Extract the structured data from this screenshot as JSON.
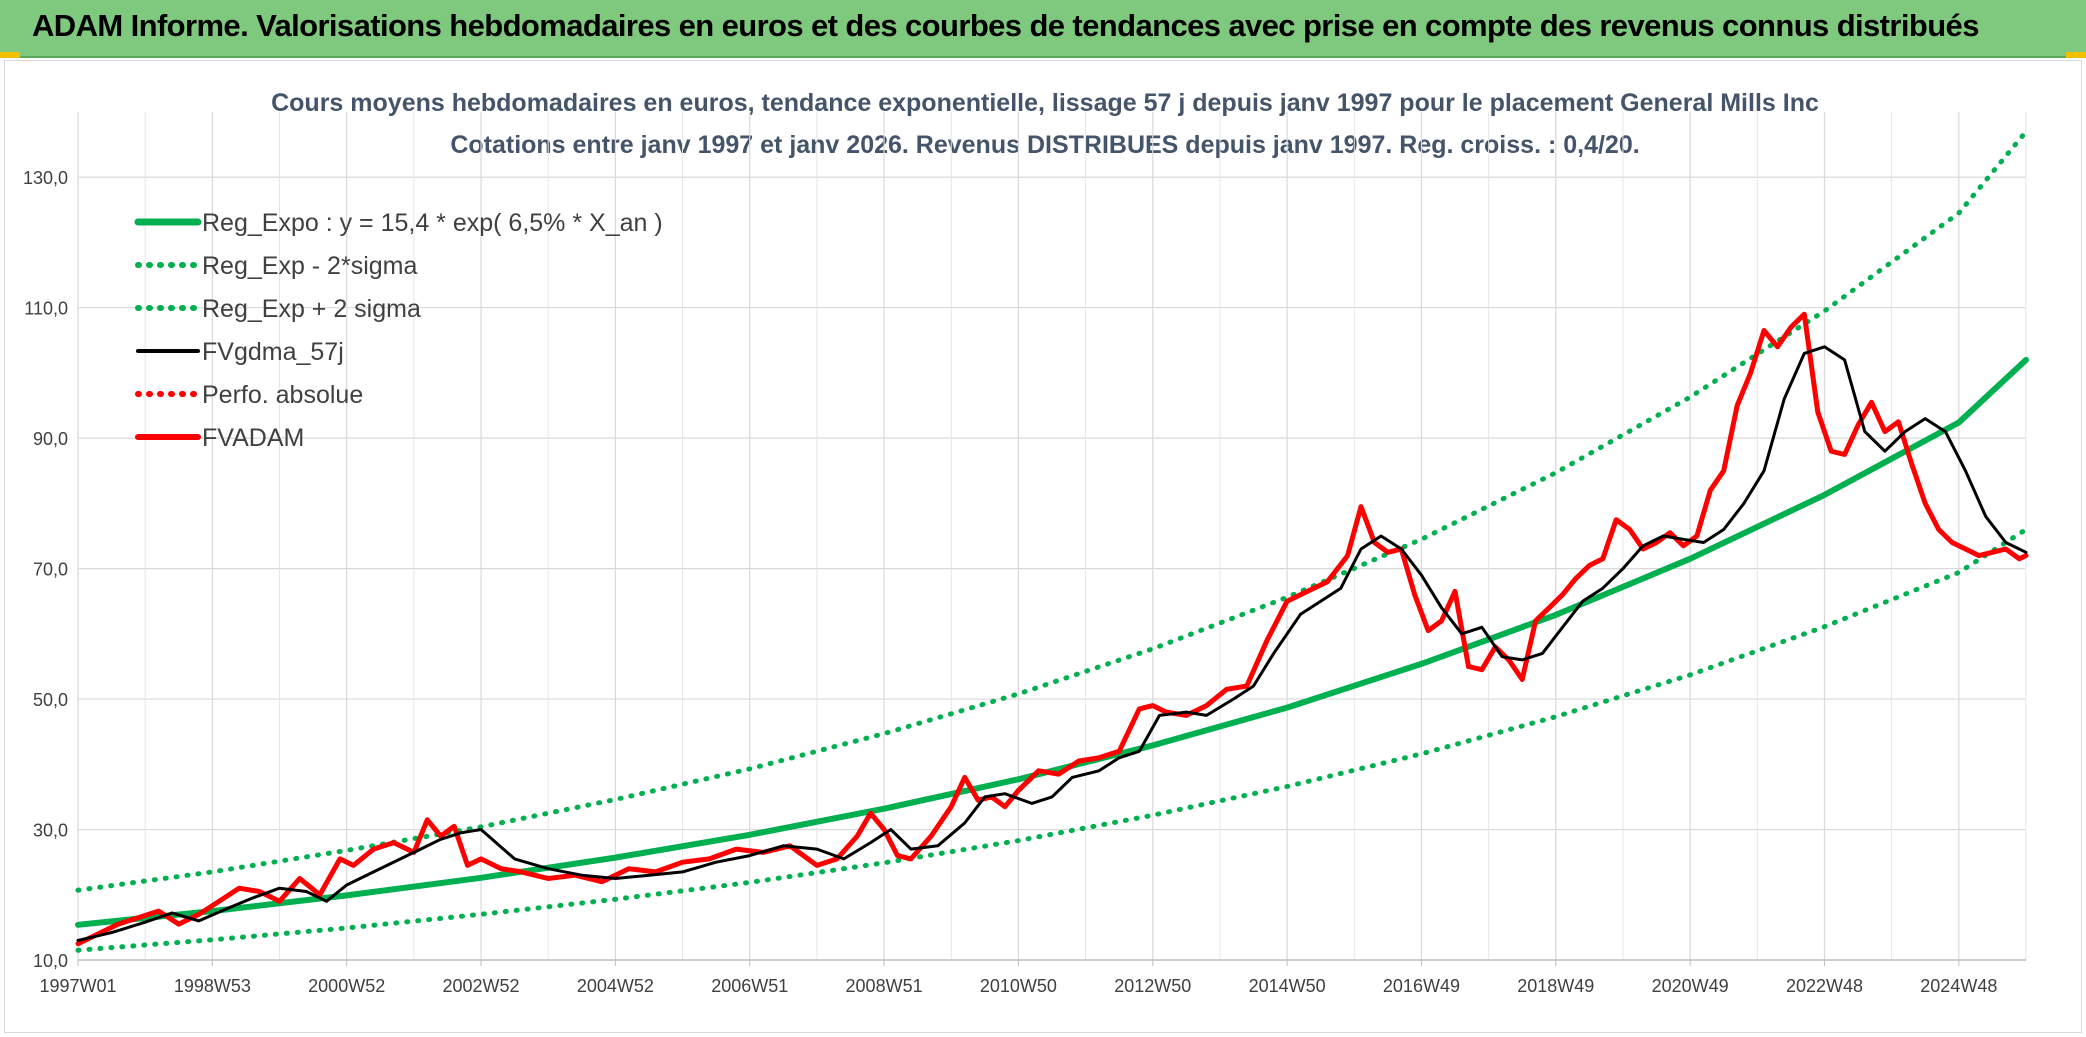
{
  "banner": {
    "title": "ADAM Informe. Valorisations hebdomadaires en euros et des courbes de tendances avec prise en compte des revenus connus distribués"
  },
  "chart_data": {
    "type": "line",
    "title": "Cours moyens hebdomadaires en euros, tendance exponentielle, lissage 57 j depuis janv 1997 pour le placement General Mills Inc",
    "subtitle": "Cotations entre janv 1997 et janv 2026. Revenus DISTRIBUES depuis janv 1997. Reg. croiss. : 0,4/20.",
    "xlabel": "",
    "ylabel": "",
    "xlim": [
      1997.0,
      2026.0
    ],
    "ylim": [
      10,
      140
    ],
    "yticks": [
      10,
      30,
      50,
      70,
      90,
      110,
      130
    ],
    "ytick_labels": [
      "10,0",
      "30,0",
      "50,0",
      "70,0",
      "90,0",
      "110,0",
      "130,0"
    ],
    "xticks": [
      1997.0,
      1999.0,
      2001.0,
      2003.0,
      2005.0,
      2007.0,
      2009.0,
      2011.0,
      2013.0,
      2015.0,
      2017.0,
      2019.0,
      2021.0,
      2023.0,
      2025.0
    ],
    "xtick_labels": [
      "1997W01",
      "1998W53",
      "2000W52",
      "2002W52",
      "2004W52",
      "2006W51",
      "2008W51",
      "2010W50",
      "2012W50",
      "2014W50",
      "2016W49",
      "2018W49",
      "2020W49",
      "2022W48",
      "2024W48"
    ],
    "grid": true,
    "legend_position": "top-left",
    "series": [
      {
        "name": "Reg_Expo : y = 15,4 * exp( 6,5% *  X_an )",
        "color": "#00b050",
        "style": "solid",
        "x": [
          1997,
          1999,
          2001,
          2003,
          2005,
          2007,
          2009,
          2011,
          2013,
          2015,
          2017,
          2019,
          2021,
          2023,
          2025,
          2026
        ],
        "values": [
          15.4,
          17.5,
          19.9,
          22.6,
          25.7,
          29.2,
          33.2,
          37.7,
          42.9,
          48.7,
          55.4,
          62.9,
          71.5,
          81.3,
          92.4,
          102.0
        ]
      },
      {
        "name": "Reg_Exp - 2*sigma",
        "color": "#00b050",
        "style": "dotted",
        "x": [
          1997,
          1999,
          2001,
          2003,
          2005,
          2007,
          2009,
          2011,
          2013,
          2015,
          2017,
          2019,
          2021,
          2023,
          2025,
          2026
        ],
        "values": [
          11.5,
          13.1,
          14.9,
          17.0,
          19.3,
          21.9,
          24.9,
          28.3,
          32.2,
          36.6,
          41.6,
          47.3,
          53.7,
          61.1,
          69.4,
          76.0
        ]
      },
      {
        "name": "Reg_Exp + 2 sigma",
        "color": "#00b050",
        "style": "dotted",
        "x": [
          1997,
          1999,
          2001,
          2003,
          2005,
          2007,
          2009,
          2011,
          2013,
          2015,
          2017,
          2019,
          2021,
          2023,
          2025,
          2026
        ],
        "values": [
          20.7,
          23.5,
          26.8,
          30.4,
          34.6,
          39.3,
          44.7,
          50.8,
          57.7,
          65.6,
          74.5,
          84.7,
          96.3,
          109.5,
          124.5,
          137.0
        ]
      },
      {
        "name": "FVgdma_57j",
        "color": "#000000",
        "style": "solid",
        "x": [
          1997.0,
          1997.5,
          1998.0,
          1998.4,
          1998.8,
          1999.2,
          1999.6,
          2000.0,
          2000.4,
          2000.7,
          2001.0,
          2001.4,
          2001.8,
          2002.1,
          2002.4,
          2002.7,
          2003.0,
          2003.5,
          2004.0,
          2004.5,
          2005.0,
          2005.5,
          2006.0,
          2006.5,
          2007.0,
          2007.5,
          2008.0,
          2008.4,
          2008.8,
          2009.1,
          2009.4,
          2009.8,
          2010.2,
          2010.5,
          2010.8,
          2011.2,
          2011.5,
          2011.8,
          2012.2,
          2012.5,
          2012.8,
          2013.1,
          2013.5,
          2013.8,
          2014.2,
          2014.5,
          2014.8,
          2015.2,
          2015.5,
          2015.8,
          2016.1,
          2016.4,
          2016.7,
          2017.0,
          2017.3,
          2017.6,
          2017.9,
          2018.2,
          2018.5,
          2018.8,
          2019.1,
          2019.4,
          2019.7,
          2020.0,
          2020.3,
          2020.6,
          2020.9,
          2021.2,
          2021.5,
          2021.8,
          2022.1,
          2022.4,
          2022.7,
          2023.0,
          2023.3,
          2023.6,
          2023.9,
          2024.2,
          2024.5,
          2024.8,
          2025.1,
          2025.4,
          2025.7,
          2026.0
        ],
        "values": [
          13.0,
          14.2,
          15.8,
          17.2,
          16.0,
          17.8,
          19.5,
          21.0,
          20.5,
          19.0,
          21.5,
          23.5,
          25.5,
          27.0,
          28.5,
          29.5,
          30.0,
          25.5,
          24.0,
          23.0,
          22.5,
          23.0,
          23.5,
          25.0,
          26.0,
          27.5,
          27.0,
          25.5,
          28.0,
          30.0,
          27.0,
          27.5,
          31.0,
          35.0,
          35.5,
          34.0,
          35.0,
          38.0,
          39.0,
          41.0,
          42.0,
          47.5,
          48.0,
          47.5,
          50.0,
          52.0,
          57.0,
          63.0,
          65.0,
          67.0,
          73.0,
          75.0,
          73.0,
          69.0,
          64.0,
          60.0,
          61.0,
          56.5,
          56.0,
          57.0,
          61.0,
          65.0,
          67.0,
          70.0,
          73.5,
          75.0,
          74.5,
          74.0,
          76.0,
          80.0,
          85.0,
          96.0,
          103.0,
          104.0,
          102.0,
          91.0,
          88.0,
          91.0,
          93.0,
          91.0,
          85.0,
          78.0,
          74.0,
          72.5
        ]
      },
      {
        "name": "Perfo. absolue",
        "color": "#ff0000",
        "style": "dotted",
        "x": [],
        "values": []
      },
      {
        "name": "FVADAM",
        "color": "#ff0000",
        "style": "solid",
        "x": [
          1997.0,
          1997.3,
          1997.6,
          1997.9,
          1998.2,
          1998.5,
          1998.8,
          1999.1,
          1999.4,
          1999.7,
          2000.0,
          2000.3,
          2000.6,
          2000.9,
          2001.1,
          2001.4,
          2001.7,
          2002.0,
          2002.2,
          2002.4,
          2002.6,
          2002.8,
          2003.0,
          2003.3,
          2003.6,
          2004.0,
          2004.4,
          2004.8,
          2005.2,
          2005.6,
          2006.0,
          2006.4,
          2006.8,
          2007.2,
          2007.6,
          2008.0,
          2008.3,
          2008.6,
          2008.8,
          2009.0,
          2009.2,
          2009.4,
          2009.7,
          2010.0,
          2010.2,
          2010.4,
          2010.6,
          2010.8,
          2011.0,
          2011.3,
          2011.6,
          2011.9,
          2012.2,
          2012.5,
          2012.8,
          2013.0,
          2013.2,
          2013.5,
          2013.8,
          2014.1,
          2014.4,
          2014.7,
          2015.0,
          2015.3,
          2015.6,
          2015.9,
          2016.1,
          2016.3,
          2016.5,
          2016.7,
          2016.9,
          2017.1,
          2017.3,
          2017.5,
          2017.7,
          2017.9,
          2018.1,
          2018.3,
          2018.5,
          2018.7,
          2018.9,
          2019.1,
          2019.3,
          2019.5,
          2019.7,
          2019.9,
          2020.1,
          2020.3,
          2020.5,
          2020.7,
          2020.9,
          2021.1,
          2021.3,
          2021.5,
          2021.7,
          2021.9,
          2022.1,
          2022.3,
          2022.5,
          2022.7,
          2022.9,
          2023.1,
          2023.3,
          2023.5,
          2023.7,
          2023.9,
          2024.1,
          2024.3,
          2024.5,
          2024.7,
          2024.9,
          2025.1,
          2025.3,
          2025.5,
          2025.7,
          2025.9,
          2026.0
        ],
        "values": [
          12.5,
          14.0,
          15.5,
          16.5,
          17.5,
          15.5,
          17.0,
          19.0,
          21.0,
          20.5,
          19.0,
          22.5,
          20.0,
          25.5,
          24.5,
          27.0,
          28.0,
          26.5,
          31.5,
          29.0,
          30.5,
          24.5,
          25.5,
          24.0,
          23.5,
          22.5,
          23.0,
          22.0,
          24.0,
          23.5,
          25.0,
          25.5,
          27.0,
          26.5,
          27.5,
          24.5,
          25.5,
          29.0,
          32.5,
          30.0,
          26.0,
          25.5,
          29.0,
          33.5,
          38.0,
          34.5,
          35.0,
          33.5,
          36.0,
          39.0,
          38.5,
          40.5,
          41.0,
          42.0,
          48.5,
          49.0,
          48.0,
          47.5,
          49.0,
          51.5,
          52.0,
          59.0,
          65.0,
          66.5,
          68.0,
          72.0,
          79.5,
          74.0,
          72.5,
          73.0,
          66.0,
          60.5,
          62.0,
          66.5,
          55.0,
          54.5,
          58.0,
          56.0,
          53.0,
          62.0,
          64.0,
          66.0,
          68.5,
          70.5,
          71.5,
          77.5,
          76.0,
          73.0,
          74.0,
          75.5,
          73.5,
          75.0,
          82.0,
          85.0,
          95.0,
          100.0,
          106.5,
          104.0,
          107.0,
          109.0,
          94.0,
          88.0,
          87.5,
          92.0,
          95.5,
          91.0,
          92.5,
          86.0,
          80.0,
          76.0,
          74.0,
          73.0,
          72.0,
          72.5,
          73.0,
          71.5,
          72.0
        ]
      }
    ]
  }
}
